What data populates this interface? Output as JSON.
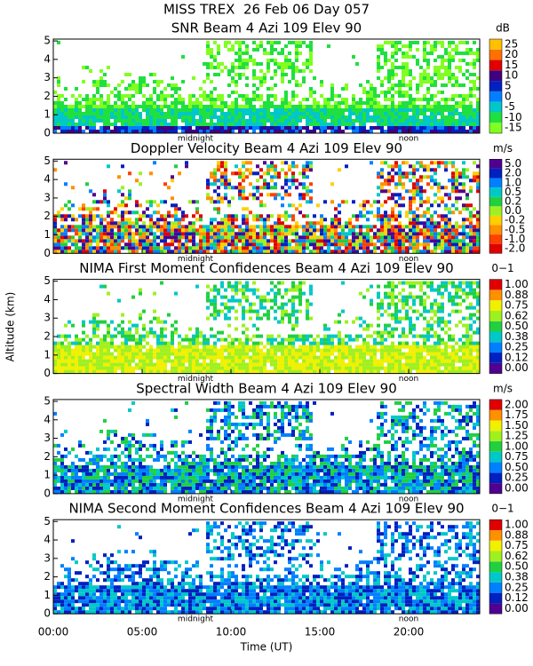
{
  "header": {
    "title": "MISS TREX  26 Feb 06 Day 057",
    "x_label": "Time (UT)",
    "y_label": "Altitude (km)"
  },
  "chart_data": [
    {
      "type": "heatmap",
      "title": "SNR Beam 4 Azi 109 Elev 90",
      "colorbar_unit": "dB",
      "xlim": [
        0,
        24
      ],
      "xticks": [
        {
          "value": 0,
          "label": "00:00"
        },
        {
          "value": 5,
          "label": "05:00"
        },
        {
          "value": 10,
          "label": "10:00"
        },
        {
          "value": 15,
          "label": "15:00"
        },
        {
          "value": 20,
          "label": "20:00"
        }
      ],
      "ylim": [
        0,
        5.1
      ],
      "yticks": [
        0,
        1,
        2,
        3,
        4,
        5
      ],
      "annotations": [
        {
          "text": "midnight",
          "x": 8
        },
        {
          "text": "noon",
          "x": 20
        }
      ],
      "colorbar": {
        "ticks": [
          -15,
          -10,
          -5,
          0,
          5,
          10,
          15,
          20,
          25
        ],
        "colors": [
          "#80ff20",
          "#20e040",
          "#00c8c8",
          "#0080ff",
          "#0020c0",
          "#400080",
          "#e00000",
          "#ff7000",
          "#ffc000"
        ]
      }
    },
    {
      "type": "heatmap",
      "title": "Doppler Velocity Beam 4 Azi 109 Elev 90",
      "colorbar_unit": "m/s",
      "xlim": [
        0,
        24
      ],
      "xticks": [
        {
          "value": 0,
          "label": "00:00"
        },
        {
          "value": 5,
          "label": "05:00"
        },
        {
          "value": 10,
          "label": "10:00"
        },
        {
          "value": 15,
          "label": "15:00"
        },
        {
          "value": 20,
          "label": "20:00"
        }
      ],
      "ylim": [
        0,
        5.1
      ],
      "yticks": [
        0,
        1,
        2,
        3,
        4,
        5
      ],
      "annotations": [
        {
          "text": "midnight",
          "x": 8
        },
        {
          "text": "noon",
          "x": 20
        }
      ],
      "colorbar": {
        "ticks": [
          {
            "value": -2,
            "label": "-2.0"
          },
          {
            "value": -1,
            "label": "-1.0"
          },
          {
            "value": -0.5,
            "label": "-0.5"
          },
          {
            "value": -0.2,
            "label": "-0.2"
          },
          {
            "value": 0,
            "label": "0.0"
          },
          {
            "value": 0.2,
            "label": "0.2"
          },
          {
            "value": 0.5,
            "label": "0.5"
          },
          {
            "value": 1,
            "label": "1.0"
          },
          {
            "value": 2,
            "label": "2.0"
          },
          {
            "value": 5,
            "label": "5.0"
          }
        ],
        "colors": [
          "#e00000",
          "#ff4000",
          "#ff9000",
          "#ffd000",
          "#a0f020",
          "#20d040",
          "#00c8c8",
          "#0080ff",
          "#0020c0",
          "#500090"
        ]
      }
    },
    {
      "type": "heatmap",
      "title": "NIMA First Moment Confidences Beam 4 Azi 109 Elev 90",
      "colorbar_unit": "0−1",
      "xlim": [
        0,
        24
      ],
      "xticks": [
        {
          "value": 0,
          "label": "00:00"
        },
        {
          "value": 5,
          "label": "05:00"
        },
        {
          "value": 10,
          "label": "10:00"
        },
        {
          "value": 15,
          "label": "15:00"
        },
        {
          "value": 20,
          "label": "20:00"
        }
      ],
      "ylim": [
        0,
        5.1
      ],
      "yticks": [
        0,
        1,
        2,
        3,
        4,
        5
      ],
      "annotations": [
        {
          "text": "midnight",
          "x": 8
        },
        {
          "text": "noon",
          "x": 20
        }
      ],
      "colorbar": {
        "ticks": [
          {
            "value": 0,
            "label": "0.00"
          },
          {
            "value": 0.12,
            "label": "0.12"
          },
          {
            "value": 0.25,
            "label": "0.25"
          },
          {
            "value": 0.38,
            "label": "0.38"
          },
          {
            "value": 0.5,
            "label": "0.50"
          },
          {
            "value": 0.62,
            "label": "0.62"
          },
          {
            "value": 0.75,
            "label": "0.75"
          },
          {
            "value": 0.88,
            "label": "0.88"
          },
          {
            "value": 1,
            "label": "1.00"
          }
        ],
        "colors": [
          "#500090",
          "#0020c0",
          "#0080ff",
          "#00c8c8",
          "#20d040",
          "#a0f020",
          "#f0f000",
          "#ff9000",
          "#e00000"
        ]
      }
    },
    {
      "type": "heatmap",
      "title": "Spectral Width Beam 4 Azi 109 Elev 90",
      "colorbar_unit": "m/s",
      "xlim": [
        0,
        24
      ],
      "xticks": [
        {
          "value": 0,
          "label": "00:00"
        },
        {
          "value": 5,
          "label": "05:00"
        },
        {
          "value": 10,
          "label": "10:00"
        },
        {
          "value": 15,
          "label": "15:00"
        },
        {
          "value": 20,
          "label": "20:00"
        }
      ],
      "ylim": [
        0,
        5.1
      ],
      "yticks": [
        0,
        1,
        2,
        3,
        4,
        5
      ],
      "annotations": [
        {
          "text": "midnight",
          "x": 8
        },
        {
          "text": "noon",
          "x": 20
        }
      ],
      "colorbar": {
        "ticks": [
          {
            "value": 0,
            "label": "0.00"
          },
          {
            "value": 0.25,
            "label": "0.25"
          },
          {
            "value": 0.5,
            "label": "0.50"
          },
          {
            "value": 0.75,
            "label": "0.75"
          },
          {
            "value": 1,
            "label": "1.00"
          },
          {
            "value": 1.25,
            "label": "1.25"
          },
          {
            "value": 1.5,
            "label": "1.50"
          },
          {
            "value": 1.75,
            "label": "1.75"
          },
          {
            "value": 2,
            "label": "2.00"
          }
        ],
        "colors": [
          "#500090",
          "#0020c0",
          "#0080ff",
          "#00c8c8",
          "#20d040",
          "#a0f020",
          "#f0f000",
          "#ff9000",
          "#e00000"
        ]
      }
    },
    {
      "type": "heatmap",
      "title": "NIMA Second Moment Confidences Beam 4 Azi 109 Elev 90",
      "colorbar_unit": "0−1",
      "xlim": [
        0,
        24
      ],
      "xticks": [
        {
          "value": 0,
          "label": "00:00"
        },
        {
          "value": 5,
          "label": "05:00"
        },
        {
          "value": 10,
          "label": "10:00"
        },
        {
          "value": 15,
          "label": "15:00"
        },
        {
          "value": 20,
          "label": "20:00"
        }
      ],
      "ylim": [
        0,
        5.1
      ],
      "yticks": [
        0,
        1,
        2,
        3,
        4,
        5
      ],
      "annotations": [
        {
          "text": "midnight",
          "x": 8
        },
        {
          "text": "noon",
          "x": 20
        }
      ],
      "colorbar": {
        "ticks": [
          {
            "value": 0,
            "label": "0.00"
          },
          {
            "value": 0.12,
            "label": "0.12"
          },
          {
            "value": 0.25,
            "label": "0.25"
          },
          {
            "value": 0.38,
            "label": "0.38"
          },
          {
            "value": 0.5,
            "label": "0.50"
          },
          {
            "value": 0.62,
            "label": "0.62"
          },
          {
            "value": 0.75,
            "label": "0.75"
          },
          {
            "value": 0.88,
            "label": "0.88"
          },
          {
            "value": 1,
            "label": "1.00"
          }
        ],
        "colors": [
          "#500090",
          "#0020c0",
          "#0080ff",
          "#00c8c8",
          "#20d040",
          "#a0f020",
          "#f0f000",
          "#ff9000",
          "#e00000"
        ]
      }
    }
  ]
}
